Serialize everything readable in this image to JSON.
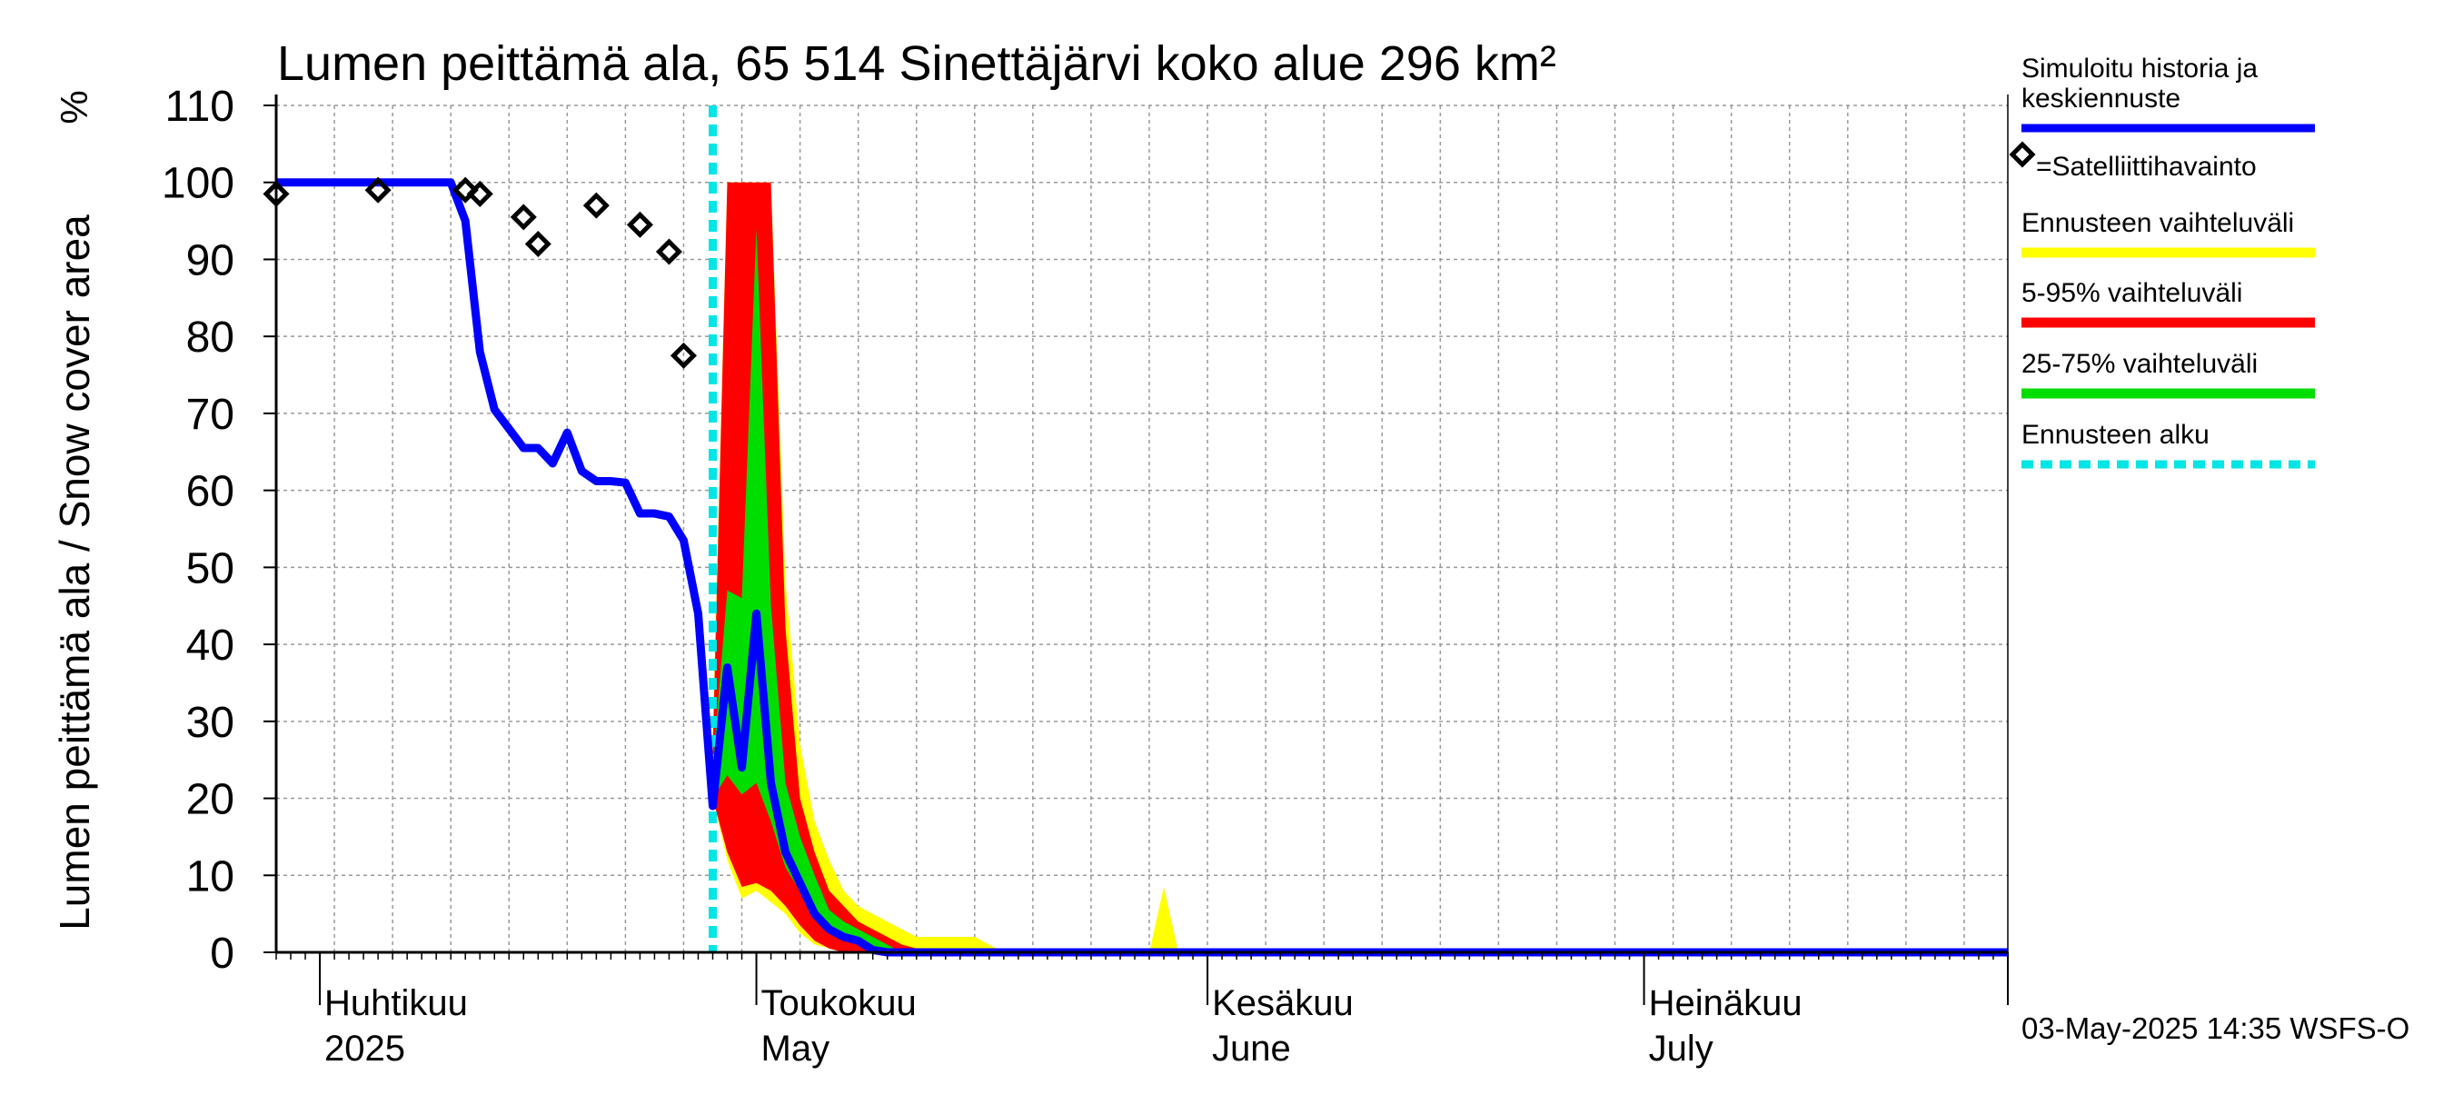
{
  "chart_data": {
    "type": "area",
    "title": "Lumen peittämä ala, 65 514 Sinettäjärvi koko alue 296 km²",
    "ylabel": "Lumen peittämä ala / Snow cover area",
    "yunit": "%",
    "ylim": [
      0,
      110
    ],
    "yticks": [
      0,
      10,
      20,
      30,
      40,
      50,
      60,
      70,
      80,
      90,
      100,
      110
    ],
    "x_start_day": 88,
    "x_end_day": 207,
    "forecast_start_day": 118,
    "month_labels": [
      {
        "day": 91,
        "fi": "Huhtikuu",
        "en": "2025"
      },
      {
        "day": 121,
        "fi": "Toukokuu",
        "en": "May"
      },
      {
        "day": 152,
        "fi": "Kesäkuu",
        "en": "June"
      },
      {
        "day": 182,
        "fi": "Heinäkuu",
        "en": "July"
      }
    ],
    "timestamp": "03-May-2025 14:35 WSFS-O",
    "legend": {
      "simulated": "Simuloitu historia ja keskiennuste",
      "satellite": "=Satelliittihavainto",
      "range": "Ennusteen vaihteluväli",
      "p5_95": "5-95% vaihteluväli",
      "p25_75": "25-75% vaihteluväli",
      "forecast_start": "Ennusteen alku"
    },
    "colors": {
      "simulated": "#0000ff",
      "range": "#ffff00",
      "p5_95": "#ff0000",
      "p25_75": "#00dd00",
      "forecast_start": "#00e5e5",
      "satellite": "#000000",
      "grid": "#999999"
    },
    "series": [
      {
        "name": "Simuloitu historia ja keskiennuste",
        "x": [
          88,
          100,
          101,
          102,
          103,
          104,
          105,
          106,
          107,
          108,
          109,
          110,
          111,
          112,
          113,
          114,
          115,
          116,
          117,
          118,
          119,
          120,
          121,
          122,
          123,
          124,
          125,
          126,
          127,
          128,
          129,
          130,
          131,
          207
        ],
        "y": [
          100,
          100,
          95,
          78,
          70.5,
          68,
          65.5,
          65.5,
          63.5,
          67.5,
          62.5,
          61.2,
          61.2,
          61,
          57,
          57,
          56.6,
          53.5,
          44,
          19,
          37,
          24,
          44,
          22,
          13,
          9,
          5,
          3,
          2,
          1.5,
          0.3,
          0,
          0,
          0
        ]
      },
      {
        "name": "Satelliittihavainto",
        "x": [
          88,
          95,
          101,
          102,
          105,
          106,
          110,
          113,
          115,
          116
        ],
        "y": [
          98.5,
          99,
          99,
          98.5,
          95.5,
          92,
          97,
          94.5,
          91,
          77.5
        ]
      }
    ],
    "bands": [
      {
        "name": "Ennusteen vaihteluväli",
        "x": [
          118,
          119,
          120,
          121,
          122,
          123,
          124,
          125,
          126,
          127,
          128,
          129,
          130,
          131,
          132,
          133,
          134,
          135,
          136,
          137,
          138,
          139,
          140,
          141,
          148,
          149,
          150,
          151
        ],
        "lower": [
          20,
          12,
          7,
          8,
          6.5,
          5,
          2.5,
          1,
          0.5,
          0,
          0,
          0,
          0,
          0,
          0,
          0,
          0,
          0,
          0,
          0,
          0,
          0,
          0,
          0,
          0,
          0,
          0,
          0
        ],
        "upper": [
          29,
          100,
          100,
          100,
          100,
          48,
          27,
          17,
          12,
          8,
          6,
          5,
          4,
          3,
          2,
          2,
          2,
          2,
          2,
          1,
          0,
          0,
          0,
          0,
          0,
          8.5,
          0,
          0
        ]
      },
      {
        "name": "5-95% vaihteluväli",
        "x": [
          118,
          119,
          120,
          121,
          122,
          123,
          124,
          125,
          126,
          127,
          128,
          129,
          130,
          131,
          132,
          133,
          134
        ],
        "lower": [
          20,
          13,
          8.5,
          9,
          8,
          6,
          3.5,
          1.5,
          0.5,
          0,
          0,
          0,
          0,
          0,
          0,
          0,
          0
        ],
        "upper": [
          26,
          100,
          100,
          100,
          100,
          42,
          20,
          13,
          8,
          6,
          4,
          3,
          2,
          1,
          0.5,
          0,
          0
        ]
      },
      {
        "name": "25-75% vaihteluväli",
        "x": [
          118,
          119,
          120,
          121,
          122,
          123,
          124,
          125,
          126,
          127,
          128,
          129,
          130,
          131
        ],
        "lower": [
          20,
          23,
          20.5,
          22,
          17,
          11,
          8,
          4.5,
          3,
          1.5,
          1,
          0.5,
          0,
          0
        ],
        "upper": [
          24,
          47,
          46,
          94,
          45,
          22,
          15,
          10,
          5.5,
          4,
          3,
          2,
          1,
          0
        ]
      }
    ]
  }
}
